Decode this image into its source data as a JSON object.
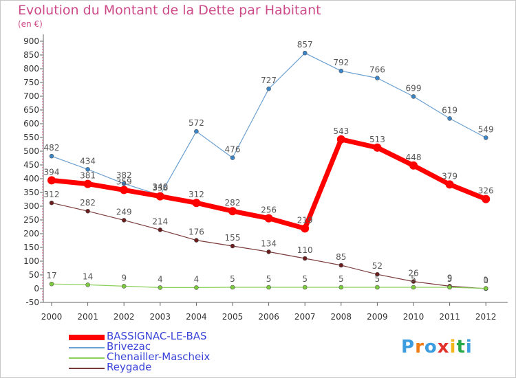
{
  "title": "Evolution du Montant de la Dette par Habitant",
  "subtitle": "(en €)",
  "logo": {
    "letters": [
      {
        "ch": "P",
        "color": "#3b9ce0"
      },
      {
        "ch": "r",
        "color": "#f07c16"
      },
      {
        "ch": "o",
        "color": "#3b9ce0"
      },
      {
        "ch": "x",
        "color": "#e2312a"
      },
      {
        "ch": "i",
        "color": "#f2b61b"
      },
      {
        "ch": "t",
        "color": "#2aa84a"
      },
      {
        "ch": "i",
        "color": "#3b9ce0"
      }
    ]
  },
  "chart_data": {
    "type": "line",
    "title": "Evolution du Montant de la Dette par Habitant",
    "subtitle": "(en €)",
    "x": [
      "2000",
      "2001",
      "2002",
      "2003",
      "2004",
      "2005",
      "2006",
      "2007",
      "2008",
      "2009",
      "2010",
      "2011",
      "2012"
    ],
    "ylim": [
      -50,
      900
    ],
    "yticks": [
      -50,
      0,
      50,
      100,
      150,
      200,
      250,
      300,
      350,
      400,
      450,
      500,
      550,
      600,
      650,
      700,
      750,
      800,
      850,
      900
    ],
    "grid": false,
    "legend_position": "bottom-left",
    "series": [
      {
        "name": "BASSIGNAC-LE-BAS",
        "color": "#ff0000",
        "marker": "#ff0000",
        "width": 7,
        "values": [
          394,
          381,
          359,
          336,
          312,
          282,
          256,
          219,
          543,
          513,
          448,
          379,
          326
        ]
      },
      {
        "name": "Brivezac",
        "color": "#6a9fd0",
        "marker": "#3a85c8",
        "width": 1.2,
        "values": [
          482,
          434,
          382,
          340,
          572,
          476,
          727,
          857,
          792,
          766,
          699,
          619,
          549
        ]
      },
      {
        "name": "Chenailler-Mascheix",
        "color": "#8ad05a",
        "marker": "#7ccc3e",
        "width": 1.2,
        "values": [
          17,
          14,
          9,
          4,
          4,
          5,
          5,
          5,
          5,
          5,
          5,
          5,
          1
        ]
      },
      {
        "name": "Reygade",
        "color": "#7a3a3a",
        "marker": "#6b1d1d",
        "width": 1.2,
        "values": [
          312,
          282,
          249,
          214,
          176,
          155,
          134,
          110,
          85,
          52,
          26,
          9,
          0
        ]
      }
    ],
    "labels": [
      {
        "series": 0,
        "values": [
          "394",
          "381",
          "359",
          "336",
          "312",
          "282",
          "256",
          "219",
          "543",
          "513",
          "448",
          "379",
          "326"
        ]
      },
      {
        "series": 1,
        "values": [
          "482",
          "434",
          "382",
          "340",
          "572",
          "476",
          "727",
          "857",
          "792",
          "766",
          "699",
          "619",
          "549"
        ]
      },
      {
        "series": 2,
        "values": [
          "17",
          "14",
          "9",
          "4",
          "4",
          "5",
          "5",
          "5",
          "5",
          "5",
          "5",
          "5",
          "1"
        ]
      },
      {
        "series": 3,
        "values": [
          "312",
          "282",
          "249",
          "214",
          "176",
          "155",
          "134",
          "110",
          "85",
          "52",
          "26",
          "9",
          "0"
        ]
      }
    ]
  }
}
